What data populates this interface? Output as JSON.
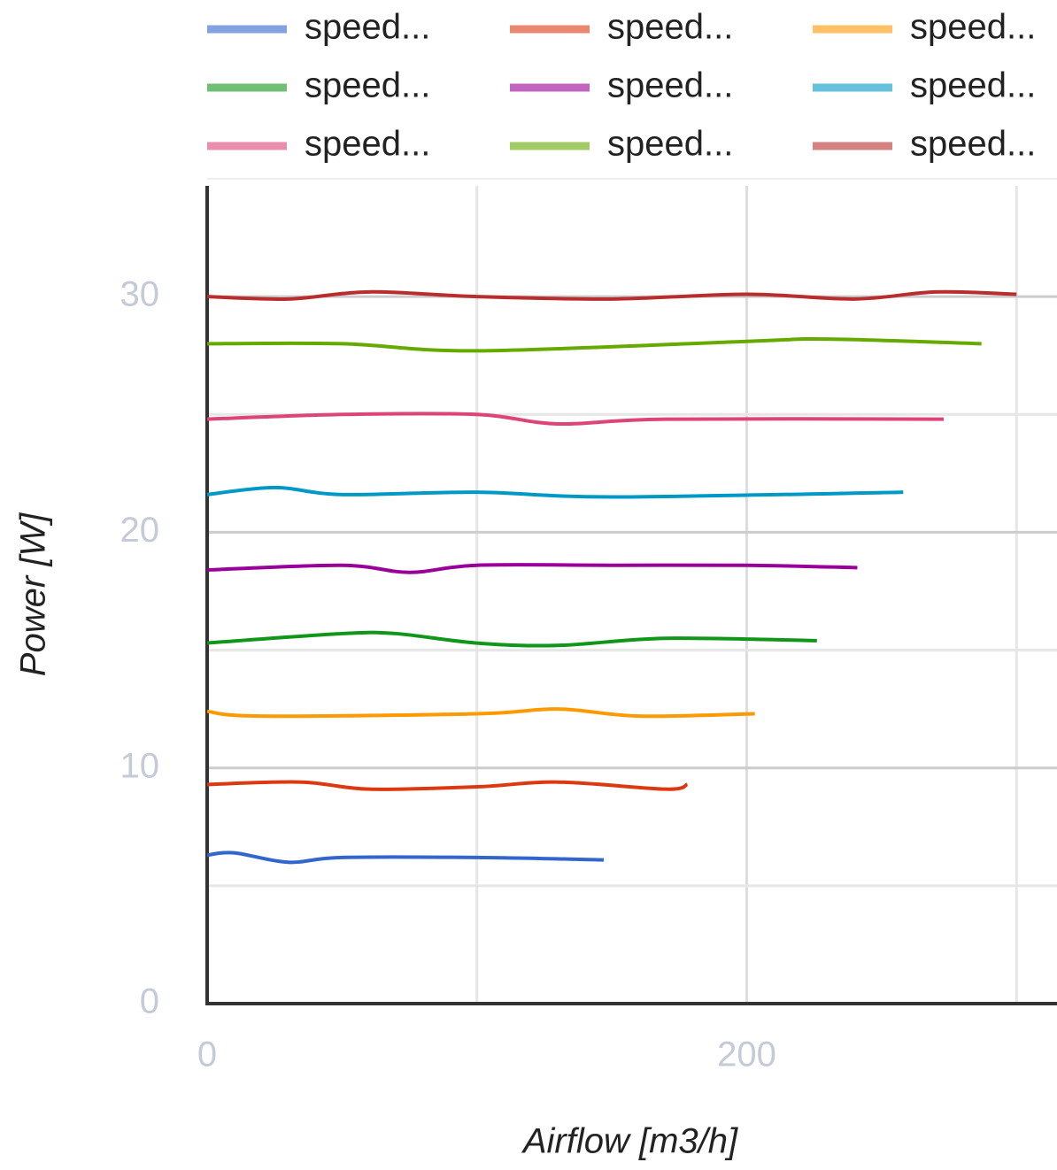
{
  "chart_data": {
    "type": "line",
    "xlabel": "Airflow [m3/h]",
    "ylabel": "Power [W]",
    "xlim": [
      0,
      315
    ],
    "xticks": [
      0,
      200
    ],
    "xminor": [
      100,
      300
    ],
    "ylim": [
      0,
      34.7
    ],
    "yticks": [
      0,
      10,
      20,
      30
    ],
    "yminor": [
      5,
      15,
      25
    ],
    "grid": true,
    "legend": "top",
    "series": [
      {
        "name": "speed...",
        "color": "#3366cc",
        "x": [
          0,
          10,
          30,
          50,
          100,
          147
        ],
        "values": [
          6.3,
          6.4,
          6.0,
          6.2,
          6.2,
          6.1
        ]
      },
      {
        "name": "speed...",
        "color": "#dc3912",
        "x": [
          0,
          35,
          60,
          100,
          130,
          170,
          178
        ],
        "values": [
          9.3,
          9.4,
          9.1,
          9.2,
          9.4,
          9.1,
          9.3
        ]
      },
      {
        "name": "speed...",
        "color": "#ff9900",
        "x": [
          0,
          20,
          100,
          130,
          160,
          203
        ],
        "values": [
          12.4,
          12.2,
          12.3,
          12.5,
          12.2,
          12.3
        ]
      },
      {
        "name": "speed...",
        "color": "#109618",
        "x": [
          0,
          50,
          70,
          100,
          130,
          170,
          226
        ],
        "values": [
          15.3,
          15.7,
          15.7,
          15.3,
          15.2,
          15.5,
          15.4
        ]
      },
      {
        "name": "speed...",
        "color": "#990099",
        "x": [
          0,
          50,
          75,
          100,
          150,
          200,
          241
        ],
        "values": [
          18.4,
          18.6,
          18.3,
          18.6,
          18.6,
          18.6,
          18.5
        ]
      },
      {
        "name": "speed...",
        "color": "#0099c6",
        "x": [
          0,
          25,
          50,
          100,
          150,
          258
        ],
        "values": [
          21.6,
          21.9,
          21.6,
          21.7,
          21.5,
          21.7
        ]
      },
      {
        "name": "speed...",
        "color": "#dd4477",
        "x": [
          0,
          50,
          100,
          130,
          170,
          273
        ],
        "values": [
          24.8,
          25.0,
          25.0,
          24.6,
          24.8,
          24.8
        ]
      },
      {
        "name": "speed...",
        "color": "#66aa00",
        "x": [
          0,
          50,
          100,
          200,
          230,
          287
        ],
        "values": [
          28.0,
          28.0,
          27.7,
          28.1,
          28.2,
          28.0
        ]
      },
      {
        "name": "speed...",
        "color": "#b82e2e",
        "x": [
          0,
          30,
          60,
          100,
          150,
          200,
          240,
          270,
          300
        ],
        "values": [
          30.0,
          29.9,
          30.2,
          30.0,
          29.9,
          30.1,
          29.9,
          30.2,
          30.1
        ]
      }
    ]
  }
}
